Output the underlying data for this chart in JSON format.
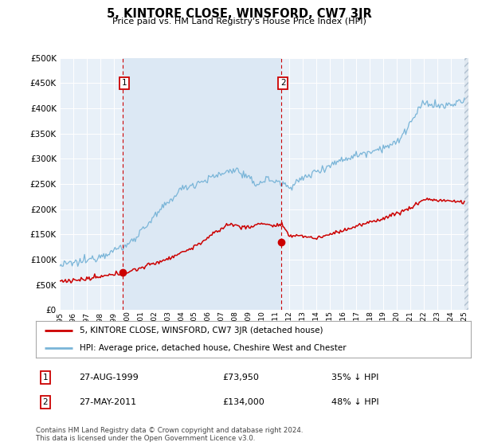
{
  "title": "5, KINTORE CLOSE, WINSFORD, CW7 3JR",
  "subtitle": "Price paid vs. HM Land Registry's House Price Index (HPI)",
  "background_color": "#ffffff",
  "plot_bg_color": "#e8f0f8",
  "plot_bg_shaded": "#dce8f4",
  "grid_color": "#ffffff",
  "ylim": [
    0,
    500000
  ],
  "yticks": [
    0,
    50000,
    100000,
    150000,
    200000,
    250000,
    300000,
    350000,
    400000,
    450000,
    500000
  ],
  "hpi_color": "#7ab5d8",
  "price_color": "#cc0000",
  "marker1_year": 1999.65,
  "marker1_value": 73950,
  "marker2_year": 2011.4,
  "marker2_value": 134000,
  "legend_line1": "5, KINTORE CLOSE, WINSFORD, CW7 3JR (detached house)",
  "legend_line2": "HPI: Average price, detached house, Cheshire West and Chester",
  "table_row1_date": "27-AUG-1999",
  "table_row1_price": "£73,950",
  "table_row1_hpi": "35% ↓ HPI",
  "table_row2_date": "27-MAY-2011",
  "table_row2_price": "£134,000",
  "table_row2_hpi": "48% ↓ HPI",
  "footnote": "Contains HM Land Registry data © Crown copyright and database right 2024.\nThis data is licensed under the Open Government Licence v3.0."
}
